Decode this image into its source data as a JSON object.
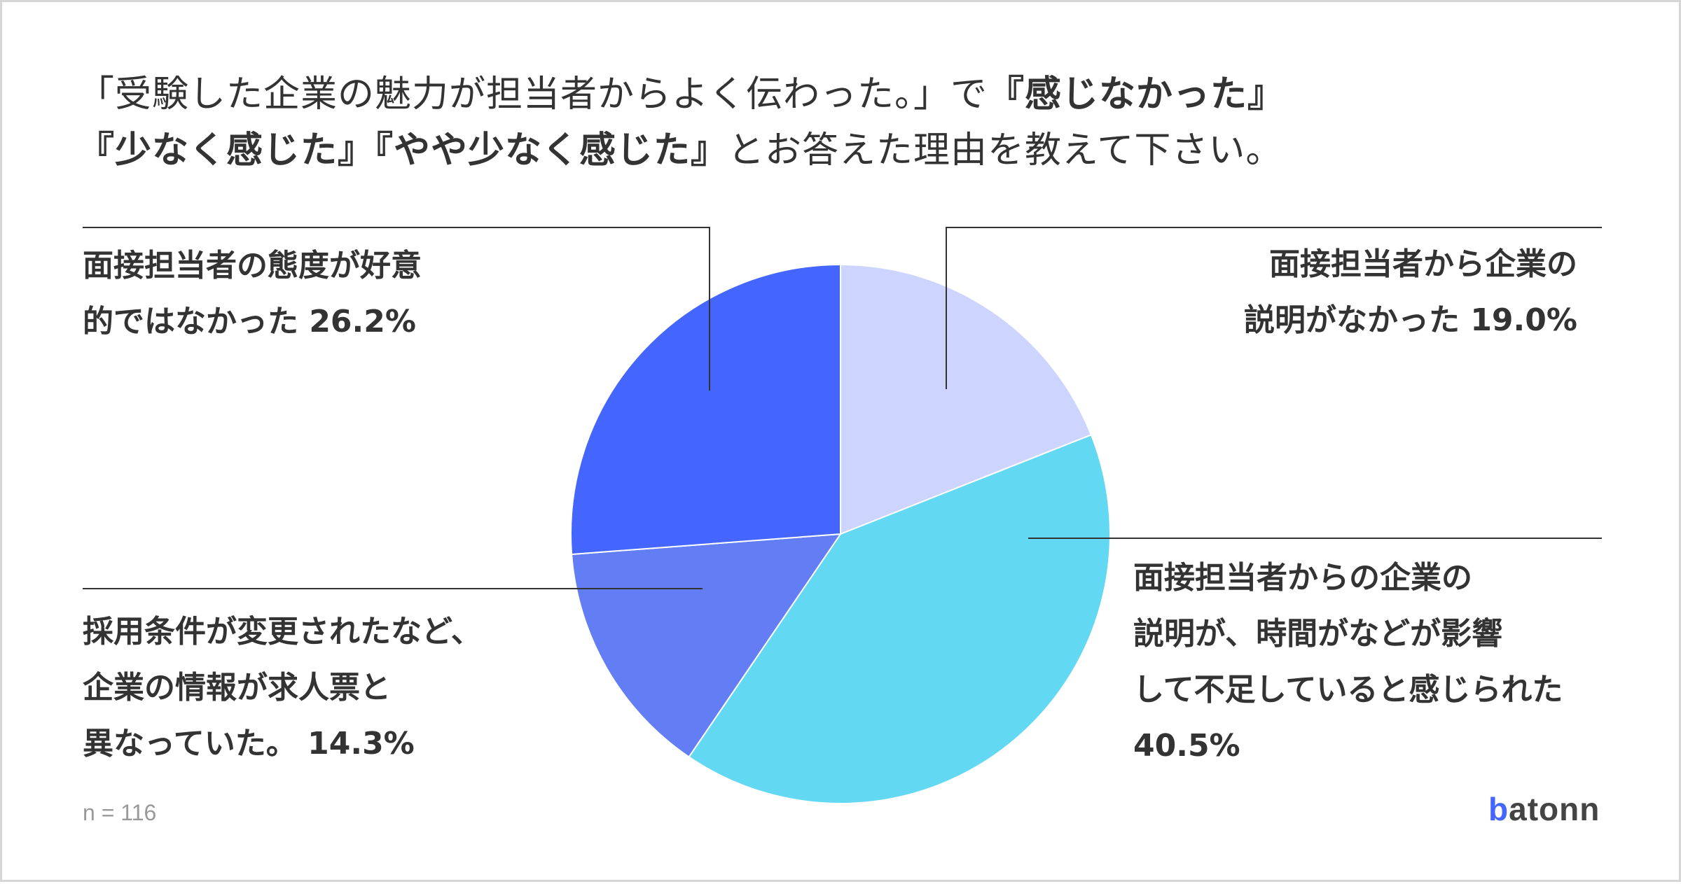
{
  "title": {
    "line1_prefix": "「受験した企業の魅力が担当者からよく伝わった。」で",
    "line1_bold": "『感じなかった』",
    "line2_bold_a": "『少なく感じた』",
    "line2_bold_b": "『やや少なく感じた』",
    "line2_suffix": "とお答えた理由を教えて下さい。"
  },
  "chart_data": {
    "type": "pie",
    "start": "12 o'clock, clockwise",
    "slices": [
      {
        "label_lines": [
          "面接担当者から企業の",
          "説明がなかった 19.0%"
        ],
        "value": 19.0,
        "color": "#cdd5ff"
      },
      {
        "label_lines": [
          "面接担当者からの企業の",
          "説明が、時間がなどが影響",
          "して不足していると感じられた",
          "40.5%"
        ],
        "value": 40.5,
        "color": "#63d8f3"
      },
      {
        "label_lines": [
          "採用条件が変更されたなど、",
          "企業の情報が求人票と",
          "異なっていた。 14.3%"
        ],
        "value": 14.3,
        "color": "#637ef5"
      },
      {
        "label_lines": [
          "面接担当者の態度が好意",
          "的ではなかった 26.2%"
        ],
        "value": 26.2,
        "color": "#4466ff"
      }
    ]
  },
  "footnote": "n = 116",
  "logo": {
    "first": "b",
    "rest": "atonn"
  }
}
